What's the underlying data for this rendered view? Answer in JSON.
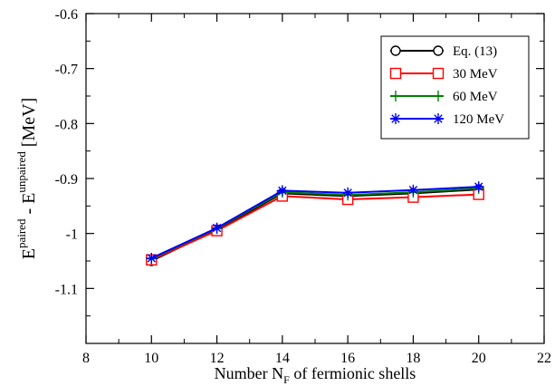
{
  "chart_data": {
    "type": "line",
    "xlabel_prefix": "Number  N",
    "xlabel_sub": "F",
    "xlabel_suffix": " of fermionic shells",
    "ylabel_paired_base": "E",
    "ylabel_paired_sup": "paired",
    "ylabel_mid": " - ",
    "ylabel_unpaired_base": "E",
    "ylabel_unpaired_sup": "unpaired",
    "ylabel_unit": " [MeV]",
    "xlim": [
      8,
      22
    ],
    "ylim": [
      -1.2,
      -0.6
    ],
    "xticks": [
      8,
      10,
      12,
      14,
      16,
      18,
      20,
      22
    ],
    "xtick_labels": [
      "8",
      "10",
      "12",
      "14",
      "16",
      "18",
      "20",
      "22"
    ],
    "yticks": [
      -1.1,
      -1.0,
      -0.9,
      -0.8,
      -0.7,
      -0.6
    ],
    "ytick_labels": [
      "-1.1",
      "-1",
      "-0.9",
      "-0.8",
      "-0.7",
      "-0.6"
    ],
    "grid": false,
    "legend_position": "top-right",
    "series": [
      {
        "name": "Eq. (13)",
        "color": "#000000",
        "marker": "circle",
        "x": [
          10,
          12,
          14,
          16,
          18,
          20
        ],
        "y": [
          -1.05,
          -0.993,
          -0.927,
          -0.932,
          -0.927,
          -0.92
        ]
      },
      {
        "name": "30 MeV",
        "color": "#ff0000",
        "marker": "square",
        "x": [
          10,
          12,
          14,
          16,
          18,
          20
        ],
        "y": [
          -1.048,
          -0.995,
          -0.932,
          -0.938,
          -0.934,
          -0.929
        ]
      },
      {
        "name": "60 MeV",
        "color": "#008000",
        "marker": "plus",
        "x": [
          10,
          12,
          14,
          16,
          18,
          20
        ],
        "y": [
          -1.046,
          -0.991,
          -0.925,
          -0.93,
          -0.925,
          -0.918
        ]
      },
      {
        "name": "120 MeV",
        "color": "#0000ff",
        "marker": "asterisk",
        "x": [
          10,
          12,
          14,
          16,
          18,
          20
        ],
        "y": [
          -1.045,
          -0.99,
          -0.922,
          -0.926,
          -0.921,
          -0.915
        ]
      }
    ]
  }
}
